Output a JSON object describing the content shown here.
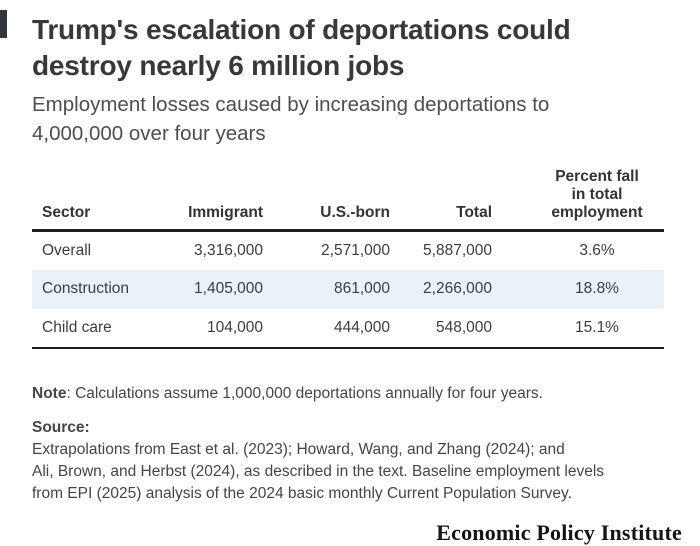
{
  "header": {
    "title_line1": "Trump's escalation of deportations could",
    "title_line2": "destroy nearly 6 million jobs",
    "subtitle_line1": "Employment losses caused by increasing deportations to",
    "subtitle_line2": "4,000,000 over four years"
  },
  "table": {
    "header": {
      "sector": "Sector",
      "immigrant": "Immigrant",
      "us_born": "U.S.-born",
      "total": "Total",
      "percent_line1": "Percent fall",
      "percent_line2": "in total",
      "percent_line3": "employment"
    },
    "rows": [
      {
        "sector": "Overall",
        "immigrant": "3,316,000",
        "us_born": "2,571,000",
        "total": "5,887,000",
        "percent": "3.6%",
        "highlight": false
      },
      {
        "sector": "Construction",
        "immigrant": "1,405,000",
        "us_born": "861,000",
        "total": "2,266,000",
        "percent": "18.8%",
        "highlight": true
      },
      {
        "sector": "Child care",
        "immigrant": "104,000",
        "us_born": "444,000",
        "total": "548,000",
        "percent": "15.1%",
        "highlight": false
      }
    ]
  },
  "note": {
    "label": "Note",
    "text": ": Calculations assume 1,000,000 deportations annually for four years."
  },
  "source": {
    "label": "Source:",
    "line1": " Extrapolations from East et al. (2023); Howard, Wang, and Zhang (2024); and",
    "line2": "Ali, Brown, and Herbst (2024), as described in the text. Baseline employment levels",
    "line3": "from EPI (2025) analysis of the 2024 basic monthly Current Population Survey."
  },
  "footer": {
    "brand": "Economic Policy Institute"
  },
  "colors": {
    "highlight_row": "#EAF1F8",
    "border": "#1F1F1F",
    "title_text": "#383838",
    "accent_mark": "#33363C"
  },
  "chart_data": {
    "type": "table",
    "title": "Trump's escalation of deportations could destroy nearly 6 million jobs",
    "subtitle": "Employment losses caused by increasing deportations to 4,000,000 over four years",
    "columns": [
      "Sector",
      "Immigrant",
      "U.S.-born",
      "Total",
      "Percent fall in total employment"
    ],
    "rows": [
      [
        "Overall",
        3316000,
        2571000,
        5887000,
        "3.6%"
      ],
      [
        "Construction",
        1405000,
        861000,
        2266000,
        "18.8%"
      ],
      [
        "Child care",
        104000,
        444000,
        548000,
        "15.1%"
      ]
    ],
    "note": "Calculations assume 1,000,000 deportations annually for four years.",
    "source": "Extrapolations from East et al. (2023); Howard, Wang, and Zhang (2024); and Ali, Brown, and Herbst (2024), as described in the text. Baseline employment levels from EPI (2025) analysis of the 2024 basic monthly Current Population Survey.",
    "legend_position": "none",
    "grid": false
  }
}
